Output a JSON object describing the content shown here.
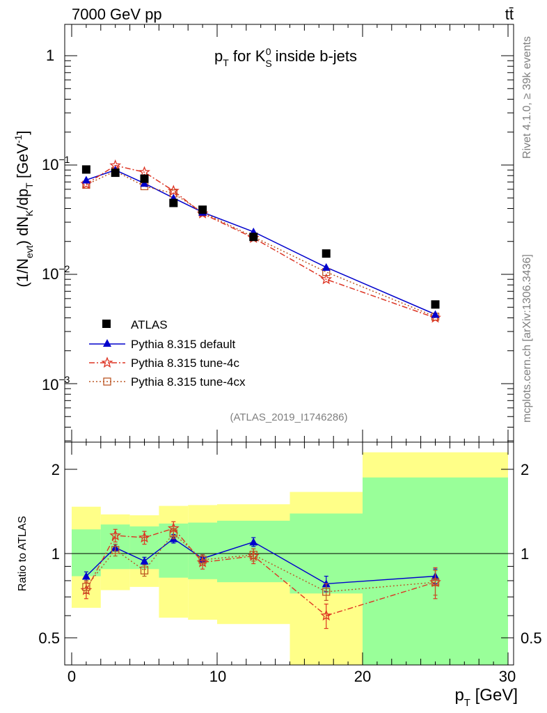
{
  "header": {
    "energy_label": "7000 GeV pp",
    "process_label": "tt̄",
    "side_top": "Rivet 4.1.0, ≥ 39k events",
    "side_bottom": "mcplots.cern.ch [arXiv:1306.3436]"
  },
  "main": {
    "title_parts": {
      "p": "p",
      "T": "T",
      "for": " for K",
      "sub": "S",
      "sup": "0",
      "rest": " inside b-jets"
    },
    "ylabel_parts": [
      "(1/N",
      "evt",
      ") dN",
      "K",
      "/dp",
      "T",
      " [GeV",
      "-1",
      "]"
    ],
    "y_ticks": [
      "10",
      "10",
      "10",
      "1"
    ],
    "y_tick_exps": [
      "−3",
      "−2",
      "−1",
      ""
    ],
    "analysis_id": "(ATLAS_2019_I1746286)"
  },
  "legend": {
    "atlas": "ATLAS",
    "default": "Pythia 8.315 default",
    "tune4c": "Pythia 8.315 tune-4c",
    "tune4cx": "Pythia 8.315 tune-4cx"
  },
  "ratio": {
    "ylabel": "Ratio to ATLAS",
    "y_ticks_left": [
      "0.5",
      "1",
      "2"
    ],
    "y_ticks_right": [
      "0.5",
      "1",
      "2"
    ]
  },
  "xaxis": {
    "ticks": [
      "0",
      "10",
      "20",
      "30"
    ],
    "label_p": "p",
    "label_T": "T",
    "label_unit": " [GeV]"
  },
  "colors": {
    "atlas": "#000000",
    "default": "#0000cc",
    "tune4c": "#dd3322",
    "tune4cx": "#bb5522",
    "band_inner": "#99ff99",
    "band_outer": "#ffff88"
  },
  "chart_data": {
    "type": "scatter",
    "title": "pT for K0S inside b-jets",
    "xlabel": "pT [GeV]",
    "ylabel": "(1/Nevt) dNK/dpT [GeV^-1]",
    "xlim": [
      -1,
      30.5
    ],
    "ylim": [
      0.0003,
      2
    ],
    "yscale": "log",
    "x": [
      1,
      3,
      5,
      7,
      9,
      12.5,
      17.5,
      25
    ],
    "bin_edges": [
      0,
      2,
      4,
      6,
      8,
      10,
      15,
      20,
      30
    ],
    "series": [
      {
        "name": "ATLAS",
        "values": [
          0.091,
          0.085,
          0.075,
          0.045,
          0.039,
          0.022,
          0.0155,
          0.0053
        ]
      },
      {
        "name": "Pythia 8.315 default",
        "values": [
          0.073,
          0.09,
          0.068,
          0.05,
          0.037,
          0.0245,
          0.0116,
          0.0043
        ]
      },
      {
        "name": "Pythia 8.315 tune-4c",
        "values": [
          0.067,
          0.099,
          0.086,
          0.058,
          0.036,
          0.0215,
          0.009,
          0.004
        ]
      },
      {
        "name": "Pythia 8.315 tune-4cx",
        "values": [
          0.066,
          0.088,
          0.064,
          0.055,
          0.037,
          0.022,
          0.0105,
          0.0041
        ]
      }
    ],
    "ratio": {
      "ylabel": "Ratio to ATLAS",
      "ylim": [
        0.36,
        2.25
      ],
      "yscale": "log",
      "series": [
        {
          "name": "Pythia 8.315 default",
          "values": [
            0.83,
            1.05,
            0.94,
            1.13,
            0.96,
            1.1,
            0.78,
            0.83
          ],
          "errors": [
            0.03,
            0.03,
            0.03,
            0.04,
            0.03,
            0.04,
            0.05,
            0.05
          ]
        },
        {
          "name": "Pythia 8.315 tune-4c",
          "values": [
            0.74,
            1.16,
            1.14,
            1.23,
            0.93,
            0.98,
            0.6,
            0.79
          ],
          "errors": [
            0.05,
            0.06,
            0.06,
            0.07,
            0.05,
            0.06,
            0.06,
            0.1
          ]
        },
        {
          "name": "Pythia 8.315 tune-4cx",
          "values": [
            0.76,
            1.03,
            0.87,
            1.18,
            0.95,
            0.99,
            0.73,
            0.79
          ],
          "errors": [
            0.04,
            0.05,
            0.04,
            0.05,
            0.04,
            0.05,
            0.05,
            0.08
          ]
        }
      ],
      "band_inner": [
        [
          0.83,
          1.22
        ],
        [
          0.88,
          1.27
        ],
        [
          0.88,
          1.25
        ],
        [
          0.82,
          1.28
        ],
        [
          0.81,
          1.29
        ],
        [
          0.79,
          1.31
        ],
        [
          0.72,
          1.39
        ],
        [
          0.34,
          1.87
        ],
        [
          0.34,
          1.87
        ]
      ],
      "band_outer": [
        [
          0.64,
          1.47
        ],
        [
          0.74,
          1.38
        ],
        [
          0.76,
          1.37
        ],
        [
          0.59,
          1.48
        ],
        [
          0.58,
          1.49
        ],
        [
          0.56,
          1.5
        ],
        [
          0.34,
          1.66
        ],
        [
          0.34,
          2.3
        ],
        [
          0.34,
          2.3
        ]
      ]
    }
  }
}
